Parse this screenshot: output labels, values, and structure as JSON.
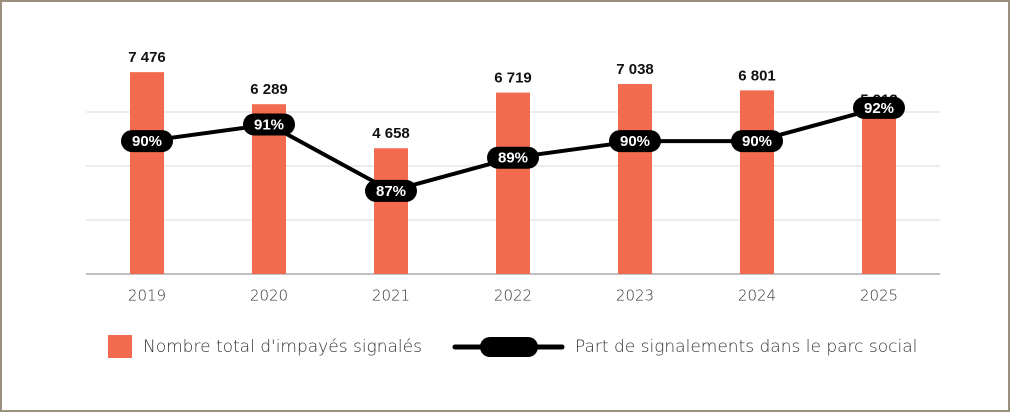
{
  "chart_data": {
    "type": "bar-line",
    "categories": [
      "2019",
      "2020",
      "2021",
      "2022",
      "2023",
      "2024",
      "2025"
    ],
    "series": [
      {
        "name": "Nombre total d'impayés signalés",
        "type": "bar",
        "color": "#f26b4f",
        "values": [
          7476,
          6289,
          4658,
          6719,
          7038,
          6801,
          5913
        ],
        "value_labels": [
          "7 476",
          "6 289",
          "4 658",
          "6 719",
          "7 038",
          "6 801",
          "5 913"
        ]
      },
      {
        "name": "Part de signalements dans le parc social",
        "type": "line",
        "color": "#000000",
        "axis": "y2",
        "values": [
          90,
          91,
          87,
          89,
          90,
          90,
          92
        ],
        "value_labels": [
          "90%",
          "91%",
          "87%",
          "89%",
          "90%",
          "90%",
          "92%"
        ]
      }
    ],
    "ylim": [
      0,
      8000
    ],
    "yticks": [
      0,
      2000,
      4000,
      6000,
      8000
    ],
    "y2lim": [
      82,
      95
    ],
    "grid": true,
    "legend": "bottom"
  }
}
